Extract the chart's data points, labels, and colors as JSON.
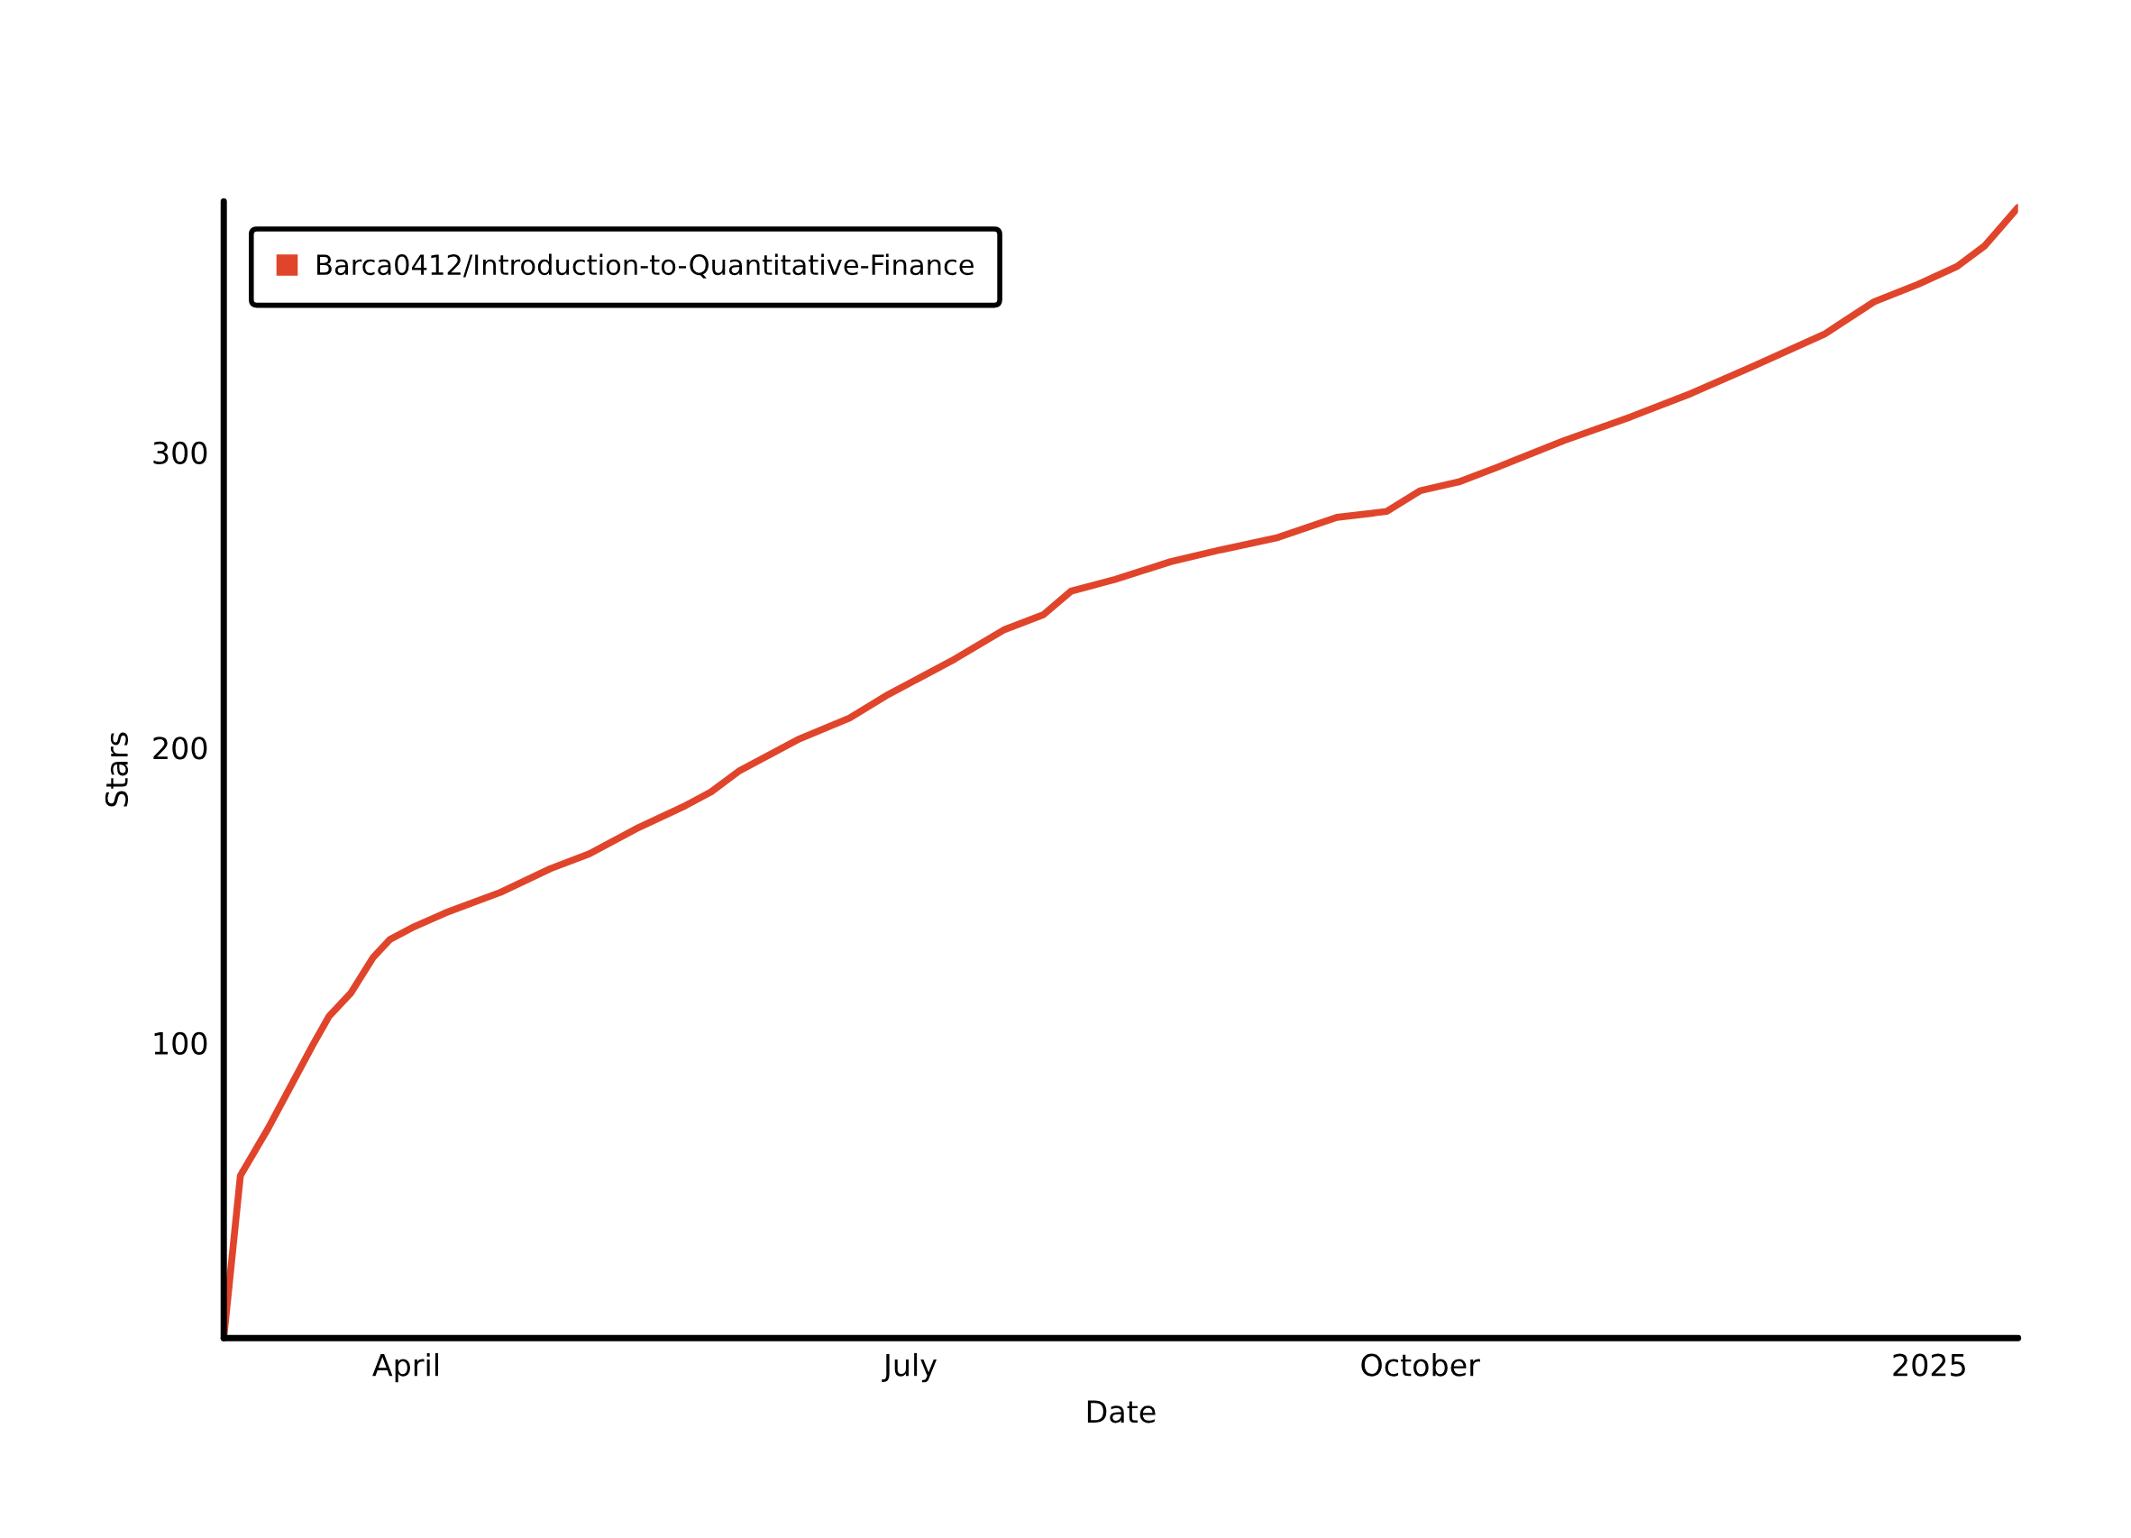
{
  "chart_data": {
    "type": "line",
    "xlabel": "Date",
    "ylabel": "Stars",
    "x": [
      "2024-02-28",
      "2024-03-02",
      "2024-03-07",
      "2024-03-11",
      "2024-03-15",
      "2024-03-18",
      "2024-03-22",
      "2024-03-26",
      "2024-03-29",
      "2024-04-02",
      "2024-04-08",
      "2024-04-18",
      "2024-04-27",
      "2024-05-04",
      "2024-05-13",
      "2024-05-21",
      "2024-05-26",
      "2024-05-31",
      "2024-06-11",
      "2024-06-20",
      "2024-06-27",
      "2024-07-09",
      "2024-07-18",
      "2024-07-25",
      "2024-07-30",
      "2024-08-07",
      "2024-08-17",
      "2024-08-26",
      "2024-09-05",
      "2024-09-16",
      "2024-09-25",
      "2024-10-01",
      "2024-10-08",
      "2024-10-15",
      "2024-10-27",
      "2024-11-08",
      "2024-11-19",
      "2024-11-30",
      "2024-12-13",
      "2024-12-22",
      "2024-12-30",
      "2025-01-06",
      "2025-01-11",
      "2025-01-17"
    ],
    "series": [
      {
        "name": "Barca0412/Introduction-to-Quantitative-Finance",
        "color": "#e0452b",
        "values": [
          0,
          55,
          71,
          85,
          99,
          109,
          117,
          129,
          135,
          139,
          144,
          151,
          159,
          164,
          173,
          180,
          185,
          192,
          203,
          210,
          218,
          230,
          240,
          245,
          253,
          257,
          263,
          267,
          271,
          278,
          280,
          287,
          290,
          295,
          304,
          312,
          320,
          329,
          340,
          351,
          357,
          363,
          370,
          383
        ]
      }
    ],
    "xlim": [
      "2024-02-28",
      "2025-01-17"
    ],
    "xticks": [
      {
        "value": "2024-04-01",
        "label": "April"
      },
      {
        "value": "2024-07-01",
        "label": "July"
      },
      {
        "value": "2024-10-01",
        "label": "October"
      },
      {
        "value": "2025-01-01",
        "label": "2025"
      }
    ],
    "ylim": [
      0,
      385
    ],
    "yticks": [
      100,
      200,
      300
    ],
    "legend": "top left"
  }
}
